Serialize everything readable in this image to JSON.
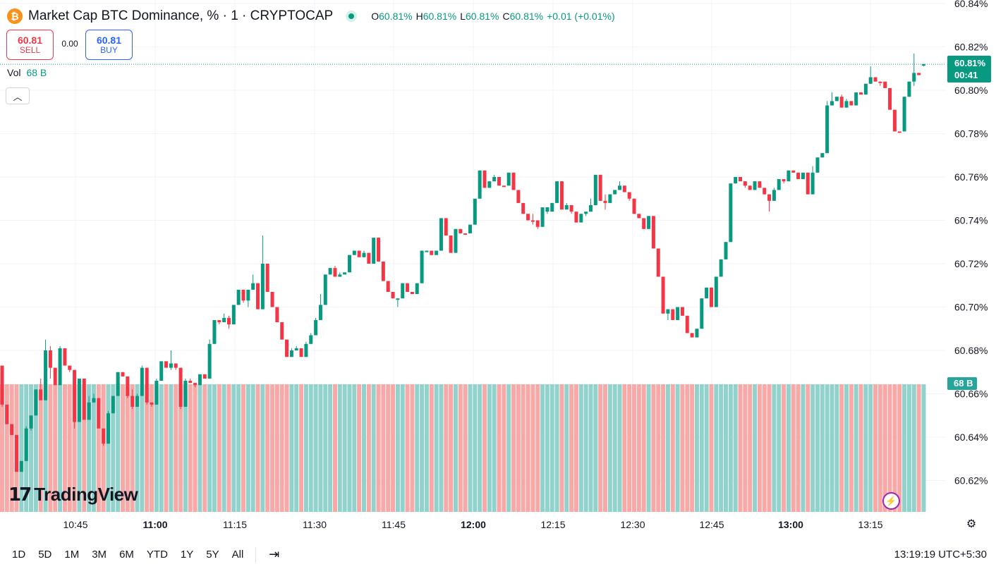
{
  "header": {
    "badge_glyph": "₿",
    "title": "Market Cap BTC Dominance, % · 1 · CRYPTOCAP",
    "ohlc": {
      "o_label": "O",
      "o": "60.81%",
      "h_label": "H",
      "h": "60.81%",
      "l_label": "L",
      "l": "60.81%",
      "c_label": "C",
      "c": "60.81%",
      "change": "+0.01 (+0.01%)"
    }
  },
  "trade": {
    "sell_price": "60.81",
    "sell_label": "SELL",
    "spread": "0.00",
    "buy_price": "60.81",
    "buy_label": "BUY"
  },
  "volume_legend": {
    "label": "Vol",
    "value": "68 B"
  },
  "collapse_icon": "chevron-up-icon",
  "logo_text": "TradingView",
  "last_price_label": {
    "price": "60.81%",
    "countdown": "00:41"
  },
  "volume_label": "68 B",
  "bottom_bar": {
    "ranges": [
      "1D",
      "5D",
      "1M",
      "3M",
      "6M",
      "YTD",
      "1Y",
      "5Y",
      "All"
    ],
    "clock": "13:19:19 UTC+5:30"
  },
  "colors": {
    "up": "#089981",
    "down": "#f23645",
    "vol_up": "#92d2cc",
    "vol_down": "#f7a9a7",
    "grid": "#f0f3fa",
    "accent": "#2962ff"
  },
  "chart_data": {
    "type": "candlestick",
    "interval_minutes": 1,
    "x_tick_labels": [
      "10:45",
      "11:00",
      "11:15",
      "11:30",
      "11:45",
      "12:00",
      "12:15",
      "12:30",
      "12:45",
      "13:00",
      "13:15"
    ],
    "x_tick_bold": [
      false,
      true,
      false,
      false,
      false,
      true,
      false,
      false,
      false,
      true,
      false
    ],
    "y_tick_labels": [
      "60.62%",
      "60.64%",
      "60.66%",
      "60.68%",
      "60.70%",
      "60.72%",
      "60.74%",
      "60.76%",
      "60.78%",
      "60.80%",
      "60.82%",
      "60.84%"
    ],
    "y_range": [
      60.605,
      60.842
    ],
    "last_price": 60.812,
    "volume_value": "68 B",
    "ohlc": [
      [
        60.673,
        60.673,
        60.654,
        60.655
      ],
      [
        60.655,
        60.655,
        60.646,
        60.646
      ],
      [
        60.646,
        60.646,
        60.641,
        60.641
      ],
      [
        60.641,
        60.641,
        60.624,
        60.624
      ],
      [
        60.624,
        60.629,
        60.624,
        60.629
      ],
      [
        60.629,
        60.645,
        60.629,
        60.644
      ],
      [
        60.644,
        60.65,
        60.643,
        60.65
      ],
      [
        60.65,
        60.662,
        60.65,
        60.662
      ],
      [
        60.662,
        60.667,
        60.657,
        60.657
      ],
      [
        60.657,
        60.685,
        60.657,
        60.68
      ],
      [
        60.68,
        60.682,
        60.667,
        60.672
      ],
      [
        60.672,
        60.672,
        60.664,
        60.664
      ],
      [
        60.664,
        60.682,
        60.664,
        60.681
      ],
      [
        60.681,
        60.681,
        60.673,
        60.673
      ],
      [
        60.673,
        60.673,
        60.67,
        60.671
      ],
      [
        60.671,
        60.671,
        60.644,
        60.647
      ],
      [
        60.647,
        60.667,
        60.647,
        60.667
      ],
      [
        60.667,
        60.667,
        60.648,
        60.648
      ],
      [
        60.648,
        60.659,
        60.648,
        60.656
      ],
      [
        60.656,
        60.66,
        60.656,
        60.658
      ],
      [
        60.658,
        60.658,
        60.644,
        60.644
      ],
      [
        60.644,
        60.644,
        60.636,
        60.637
      ],
      [
        60.637,
        60.652,
        60.637,
        60.651
      ],
      [
        60.651,
        60.659,
        60.651,
        60.659
      ],
      [
        60.659,
        60.67,
        60.659,
        60.67
      ],
      [
        60.67,
        60.67,
        60.668,
        60.668
      ],
      [
        60.668,
        60.668,
        60.658,
        60.659
      ],
      [
        60.659,
        60.662,
        60.653,
        60.654
      ],
      [
        60.654,
        60.66,
        60.654,
        60.659
      ],
      [
        60.659,
        60.673,
        60.659,
        60.672
      ],
      [
        60.672,
        60.672,
        60.655,
        60.656
      ],
      [
        60.656,
        60.656,
        60.654,
        60.655
      ],
      [
        60.655,
        60.667,
        60.655,
        60.666
      ],
      [
        60.666,
        60.675,
        60.666,
        60.675
      ],
      [
        60.675,
        60.675,
        60.672,
        60.672
      ],
      [
        60.672,
        60.68,
        60.671,
        60.674
      ],
      [
        60.674,
        60.674,
        60.671,
        60.672
      ],
      [
        60.672,
        60.672,
        60.653,
        60.654
      ],
      [
        60.654,
        60.667,
        60.654,
        60.666
      ],
      [
        60.666,
        60.667,
        60.665,
        60.665
      ],
      [
        60.665,
        60.665,
        60.663,
        60.664
      ],
      [
        60.664,
        60.669,
        60.664,
        60.669
      ],
      [
        60.669,
        60.669,
        60.667,
        60.667
      ],
      [
        60.667,
        60.685,
        60.667,
        60.683
      ],
      [
        60.683,
        60.694,
        60.683,
        60.694
      ],
      [
        60.694,
        60.694,
        60.692,
        60.693
      ],
      [
        60.693,
        60.697,
        60.693,
        60.695
      ],
      [
        60.695,
        60.696,
        60.69,
        60.692
      ],
      [
        60.692,
        60.7,
        60.692,
        60.701
      ],
      [
        60.701,
        60.708,
        60.701,
        60.708
      ],
      [
        60.708,
        60.708,
        60.702,
        60.703
      ],
      [
        60.703,
        60.708,
        60.7,
        60.708
      ],
      [
        60.708,
        60.715,
        60.708,
        60.711
      ],
      [
        60.711,
        60.711,
        60.699,
        60.699
      ],
      [
        60.699,
        60.733,
        60.699,
        60.72
      ],
      [
        60.72,
        60.72,
        60.707,
        60.707
      ],
      [
        60.707,
        60.707,
        60.7,
        60.7
      ],
      [
        60.7,
        60.7,
        60.693,
        60.693
      ],
      [
        60.693,
        60.693,
        60.685,
        60.685
      ],
      [
        60.685,
        60.685,
        60.677,
        60.677
      ],
      [
        60.677,
        60.681,
        60.677,
        60.68
      ],
      [
        60.68,
        60.682,
        60.68,
        60.681
      ],
      [
        60.681,
        60.681,
        60.677,
        60.677
      ],
      [
        60.677,
        60.684,
        60.677,
        60.683
      ],
      [
        60.683,
        60.688,
        60.683,
        60.687
      ],
      [
        60.687,
        60.695,
        60.687,
        60.694
      ],
      [
        60.694,
        60.706,
        60.694,
        60.701
      ],
      [
        60.701,
        60.715,
        60.701,
        60.715
      ],
      [
        60.715,
        60.718,
        60.715,
        60.718
      ],
      [
        60.718,
        60.719,
        60.714,
        60.714
      ],
      [
        60.714,
        60.716,
        60.714,
        60.715
      ],
      [
        60.715,
        60.715,
        60.715,
        60.716
      ],
      [
        60.716,
        60.724,
        60.716,
        60.724
      ],
      [
        60.724,
        60.726,
        60.724,
        60.726
      ],
      [
        60.726,
        60.726,
        60.723,
        60.723
      ],
      [
        60.723,
        60.726,
        60.723,
        60.725
      ],
      [
        60.725,
        60.725,
        60.72,
        60.72
      ],
      [
        60.72,
        60.732,
        60.72,
        60.732
      ],
      [
        60.732,
        60.732,
        60.721,
        60.721
      ],
      [
        60.721,
        60.721,
        60.712,
        60.712
      ],
      [
        60.712,
        60.712,
        60.707,
        60.707
      ],
      [
        60.707,
        60.707,
        60.704,
        60.704
      ],
      [
        60.704,
        60.704,
        60.7,
        60.704
      ],
      [
        60.704,
        60.711,
        60.704,
        60.711
      ],
      [
        60.711,
        60.711,
        60.707,
        60.707
      ],
      [
        60.707,
        60.707,
        60.706,
        60.706
      ],
      [
        60.706,
        60.711,
        60.706,
        60.711
      ],
      [
        60.711,
        60.726,
        60.711,
        60.726
      ],
      [
        60.726,
        60.726,
        60.726,
        60.726
      ],
      [
        60.726,
        60.726,
        60.724,
        60.724
      ],
      [
        60.724,
        60.726,
        60.724,
        60.726
      ],
      [
        60.726,
        60.741,
        60.726,
        60.741
      ],
      [
        60.741,
        60.741,
        60.733,
        60.733
      ],
      [
        60.733,
        60.733,
        60.725,
        60.725
      ],
      [
        60.725,
        60.736,
        60.725,
        60.736
      ],
      [
        60.736,
        60.736,
        60.734,
        60.734
      ],
      [
        60.734,
        60.734,
        60.734,
        60.734
      ],
      [
        60.734,
        60.738,
        60.734,
        60.738
      ],
      [
        60.738,
        60.75,
        60.738,
        60.75
      ],
      [
        60.75,
        60.763,
        60.75,
        60.763
      ],
      [
        60.763,
        60.763,
        60.755,
        60.755
      ],
      [
        60.755,
        60.758,
        60.755,
        60.758
      ],
      [
        60.758,
        60.761,
        60.758,
        60.76
      ],
      [
        60.76,
        60.76,
        60.756,
        60.756
      ],
      [
        60.756,
        60.756,
        60.756,
        60.756
      ],
      [
        60.756,
        60.762,
        60.756,
        60.762
      ],
      [
        60.762,
        60.762,
        60.754,
        60.754
      ],
      [
        60.754,
        60.754,
        60.748,
        60.748
      ],
      [
        60.748,
        60.748,
        60.743,
        60.743
      ],
      [
        60.743,
        60.743,
        60.74,
        60.74
      ],
      [
        60.74,
        60.743,
        60.738,
        60.74
      ],
      [
        60.74,
        60.74,
        60.736,
        60.737
      ],
      [
        60.737,
        60.746,
        60.737,
        60.746
      ],
      [
        60.746,
        60.746,
        60.743,
        60.744
      ],
      [
        60.744,
        60.748,
        60.744,
        60.748
      ],
      [
        60.748,
        60.758,
        60.748,
        60.758
      ],
      [
        60.758,
        60.758,
        60.745,
        60.745
      ],
      [
        60.745,
        60.748,
        60.745,
        60.747
      ],
      [
        60.747,
        60.747,
        60.743,
        60.744
      ],
      [
        60.744,
        60.744,
        60.739,
        60.739
      ],
      [
        60.739,
        60.743,
        60.739,
        60.743
      ],
      [
        60.743,
        60.744,
        60.742,
        60.744
      ],
      [
        60.744,
        60.75,
        60.744,
        60.747
      ],
      [
        60.747,
        60.761,
        60.747,
        60.761
      ],
      [
        60.761,
        60.761,
        60.749,
        60.749
      ],
      [
        60.749,
        60.752,
        60.745,
        60.748
      ],
      [
        60.748,
        60.752,
        60.748,
        60.752
      ],
      [
        60.752,
        60.752,
        60.754,
        60.754
      ],
      [
        60.754,
        60.758,
        60.754,
        60.756
      ],
      [
        60.756,
        60.756,
        60.753,
        60.753
      ],
      [
        60.753,
        60.753,
        60.749,
        60.75
      ],
      [
        60.75,
        60.75,
        60.743,
        60.743
      ],
      [
        60.743,
        60.743,
        60.741,
        60.741
      ],
      [
        60.741,
        60.741,
        60.736,
        60.736
      ],
      [
        60.736,
        60.742,
        60.736,
        60.742
      ],
      [
        60.742,
        60.742,
        60.727,
        60.727
      ],
      [
        60.727,
        60.727,
        60.714,
        60.714
      ],
      [
        60.714,
        60.714,
        60.697,
        60.697
      ],
      [
        60.697,
        60.699,
        60.694,
        60.699
      ],
      [
        60.699,
        60.699,
        60.694,
        60.694
      ],
      [
        60.694,
        60.7,
        60.694,
        60.7
      ],
      [
        60.7,
        60.7,
        60.696,
        60.696
      ],
      [
        60.696,
        60.696,
        60.688,
        60.688
      ],
      [
        60.688,
        60.688,
        60.686,
        60.686
      ],
      [
        60.686,
        60.69,
        60.686,
        60.69
      ],
      [
        60.69,
        60.704,
        60.69,
        60.704
      ],
      [
        60.704,
        60.709,
        60.704,
        60.709
      ],
      [
        60.709,
        60.709,
        60.7,
        60.7
      ],
      [
        60.7,
        60.714,
        60.7,
        60.714
      ],
      [
        60.714,
        60.722,
        60.714,
        60.722
      ],
      [
        60.722,
        60.73,
        60.722,
        60.73
      ],
      [
        60.73,
        60.757,
        60.73,
        60.757
      ],
      [
        60.757,
        60.76,
        60.757,
        60.76
      ],
      [
        60.76,
        60.76,
        60.758,
        60.758
      ],
      [
        60.758,
        60.758,
        60.755,
        60.756
      ],
      [
        60.756,
        60.756,
        60.754,
        60.754
      ],
      [
        60.754,
        60.758,
        60.754,
        60.758
      ],
      [
        60.758,
        60.758,
        60.755,
        60.755
      ],
      [
        60.755,
        60.755,
        60.752,
        60.752
      ],
      [
        60.752,
        60.752,
        60.744,
        60.749
      ],
      [
        60.749,
        60.755,
        60.749,
        60.754
      ],
      [
        60.754,
        60.759,
        60.754,
        60.759
      ],
      [
        60.759,
        60.759,
        60.757,
        60.758
      ],
      [
        60.758,
        60.763,
        60.758,
        60.763
      ],
      [
        60.763,
        60.763,
        60.762,
        60.762
      ],
      [
        60.762,
        60.762,
        60.759,
        60.759
      ],
      [
        60.759,
        60.762,
        60.759,
        60.762
      ],
      [
        60.762,
        60.762,
        60.752,
        60.752
      ],
      [
        60.752,
        60.765,
        60.752,
        60.762
      ],
      [
        60.762,
        60.769,
        60.762,
        60.769
      ],
      [
        60.769,
        60.771,
        60.769,
        60.771
      ],
      [
        60.771,
        60.795,
        60.771,
        60.793
      ],
      [
        60.793,
        60.799,
        60.793,
        60.795
      ],
      [
        60.795,
        60.797,
        60.795,
        60.797
      ],
      [
        60.797,
        60.798,
        60.792,
        60.792
      ],
      [
        60.792,
        60.796,
        60.792,
        60.795
      ],
      [
        60.795,
        60.795,
        60.793,
        60.793
      ],
      [
        60.793,
        60.799,
        60.793,
        60.799
      ],
      [
        60.799,
        60.799,
        60.798,
        60.798
      ],
      [
        60.798,
        60.803,
        60.798,
        60.803
      ],
      [
        60.803,
        60.811,
        60.803,
        60.806
      ],
      [
        60.806,
        60.806,
        60.804,
        60.804
      ],
      [
        60.804,
        60.804,
        60.802,
        60.804
      ],
      [
        60.804,
        60.804,
        60.801,
        60.801
      ],
      [
        60.801,
        60.801,
        60.791,
        60.791
      ],
      [
        60.791,
        60.791,
        60.781,
        60.781
      ],
      [
        60.781,
        60.781,
        60.781,
        60.781
      ],
      [
        60.781,
        60.797,
        60.781,
        60.797
      ],
      [
        60.797,
        60.804,
        60.797,
        60.804
      ],
      [
        60.804,
        60.817,
        60.802,
        60.808
      ],
      [
        60.808,
        60.808,
        60.807,
        60.807
      ],
      [
        60.812,
        60.812,
        60.811,
        60.812
      ]
    ],
    "up_flags": [
      0,
      0,
      0,
      0,
      1,
      1,
      1,
      1,
      0,
      1,
      0,
      0,
      1,
      0,
      0,
      0,
      1,
      0,
      1,
      1,
      0,
      0,
      1,
      1,
      1,
      0,
      0,
      0,
      1,
      1,
      0,
      0,
      1,
      1,
      0,
      1,
      0,
      0,
      1,
      0,
      0,
      1,
      0,
      1,
      1,
      0,
      1,
      0,
      1,
      1,
      0,
      1,
      1,
      0,
      1,
      0,
      0,
      0,
      0,
      0,
      1,
      1,
      0,
      1,
      1,
      1,
      1,
      1,
      1,
      0,
      1,
      1,
      1,
      1,
      0,
      1,
      0,
      1,
      0,
      0,
      0,
      0,
      1,
      1,
      0,
      0,
      1,
      1,
      1,
      0,
      1,
      1,
      0,
      0,
      1,
      0,
      0,
      1,
      1,
      1,
      0,
      1,
      1,
      0,
      0,
      1,
      0,
      0,
      0,
      0,
      0,
      0,
      1,
      1,
      1,
      1,
      0,
      1,
      0,
      0,
      1,
      1,
      1,
      1,
      0,
      0,
      1,
      1,
      1,
      0,
      0,
      0,
      0,
      0,
      1,
      0,
      0,
      0,
      1,
      0,
      1,
      0,
      0,
      0,
      1,
      1,
      1,
      0,
      1,
      1,
      1,
      1,
      1,
      0,
      0,
      0,
      1,
      0,
      0,
      0,
      1,
      1,
      0,
      1,
      0,
      0,
      1,
      0,
      1,
      1,
      1,
      1,
      1,
      1,
      0,
      1,
      0,
      1,
      0,
      1,
      1,
      0,
      0,
      0,
      0,
      0,
      0,
      1,
      1,
      1,
      0,
      1
    ]
  }
}
